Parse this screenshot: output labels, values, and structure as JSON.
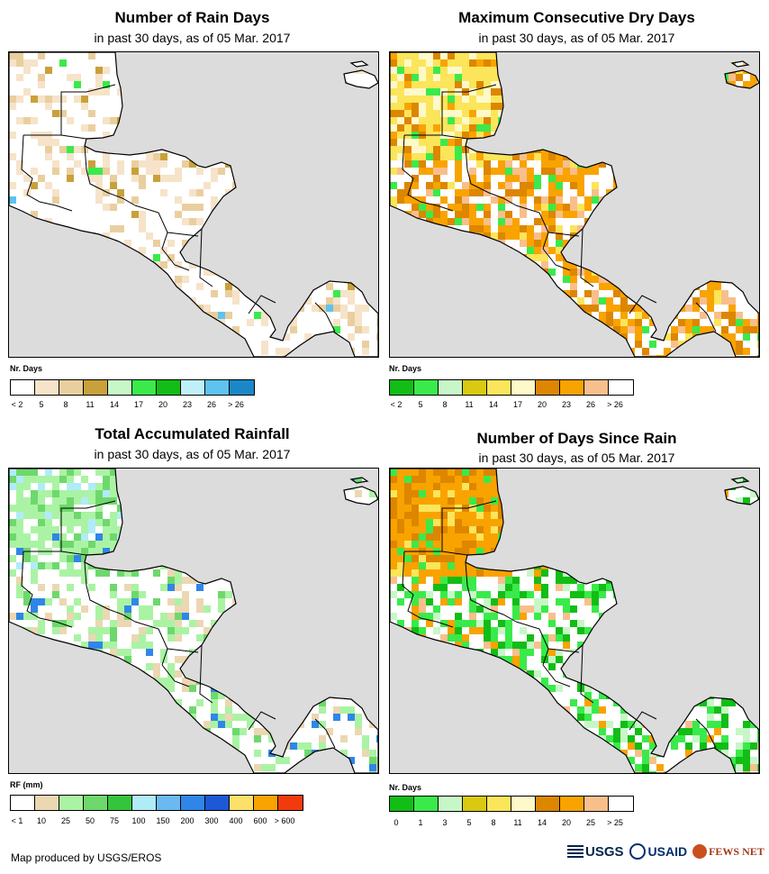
{
  "panels": [
    {
      "title": "Number of Rain Days",
      "subtitle": "in past 30 days, as of 05 Mar. 2017",
      "legend_title": "Nr. Days",
      "legend_colors": [
        "#ffffff",
        "#f6e3c9",
        "#e9cf9f",
        "#c9a13a",
        "#c7f7c7",
        "#3aea4a",
        "#12bd15",
        "#bff0fa",
        "#5ec3ee",
        "#1c87c8"
      ],
      "legend_labels": [
        "< 2",
        "5",
        "8",
        "11",
        "14",
        "17",
        "20",
        "23",
        "26",
        "> 26"
      ]
    },
    {
      "title": "Maximum Consecutive Dry Days",
      "subtitle": "in past 30 days, as of 05 Mar. 2017",
      "legend_title": "Nr. Days",
      "legend_colors": [
        "#12bd15",
        "#3aea4a",
        "#c7f7c7",
        "#d9c910",
        "#fbe55a",
        "#fff9c9",
        "#dd8600",
        "#f9a300",
        "#f8bf8c",
        "#ffffff"
      ],
      "legend_labels": [
        "< 2",
        "5",
        "8",
        "11",
        "14",
        "17",
        "20",
        "23",
        "26",
        "> 26"
      ]
    },
    {
      "title": "Total Accumulated Rainfall",
      "subtitle": "in past 30 days, as of 05 Mar. 2017",
      "legend_title": "RF (mm)",
      "legend_colors": [
        "#ffffff",
        "#ecd7b3",
        "#abf3a4",
        "#6ed86c",
        "#35c53c",
        "#b0ecf8",
        "#6ab9f0",
        "#2f86e8",
        "#1c58d8",
        "#fbe06a",
        "#f9a300",
        "#f23b0c"
      ],
      "legend_labels": [
        "< 1",
        "10",
        "25",
        "50",
        "75",
        "100",
        "150",
        "200",
        "300",
        "400",
        "600",
        "> 600"
      ]
    },
    {
      "title": "Number of Days Since Rain",
      "subtitle": "in past 30 days, as of 05 Mar. 2017",
      "legend_title": "Nr. Days",
      "legend_colors": [
        "#12bd15",
        "#3aea4a",
        "#c7f7c7",
        "#d9c910",
        "#fbe55a",
        "#fff9c9",
        "#dd8600",
        "#f9a300",
        "#f8bf8c",
        "#ffffff"
      ],
      "legend_labels": [
        "0",
        "1",
        "3",
        "5",
        "8",
        "11",
        "14",
        "20",
        "25",
        "> 25"
      ]
    }
  ],
  "footer": {
    "credit": "Map produced by USGS/EROS",
    "logos": [
      "USGS",
      "USAID",
      "FEWS NET"
    ]
  }
}
